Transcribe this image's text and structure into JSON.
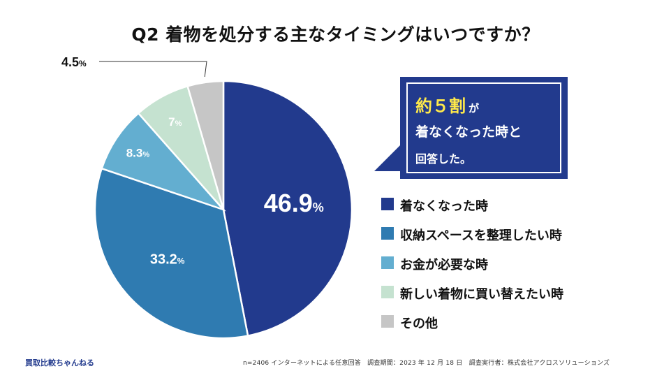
{
  "title": "Q2 着物を処分する主なタイミングはいつですか？",
  "chart_data": {
    "type": "pie",
    "title": "Q2 着物を処分する主なタイミングはいつですか？",
    "unit": "%",
    "slices": [
      {
        "label": "着なくなった時",
        "value": 46.9,
        "display": "46.9",
        "color": "#223a8d"
      },
      {
        "label": "収納スペースを整理したい時",
        "value": 33.2,
        "display": "33.2",
        "color": "#2f7bb1"
      },
      {
        "label": "お金が必要な時",
        "value": 8.3,
        "display": "8.3",
        "color": "#63aed0"
      },
      {
        "label": "新しい着物に買い替えたい時",
        "value": 7,
        "display": "7",
        "color": "#c5e2d0"
      },
      {
        "label": "その他",
        "value": 4.5,
        "display": "4.5",
        "color": "#c6c6c6"
      }
    ],
    "legend_position": "right"
  },
  "callout": {
    "highlight": "約５割",
    "particle": "が",
    "line2": "着なくなった時と",
    "line3": "回答した。"
  },
  "footer": {
    "brand": "買取比較ちゃんねる",
    "note": "n=2406 インターネットによる任意回答　調査期間：2023 年 12 月 18 日　調査実行者：株式会社アクロスソリューションズ"
  }
}
